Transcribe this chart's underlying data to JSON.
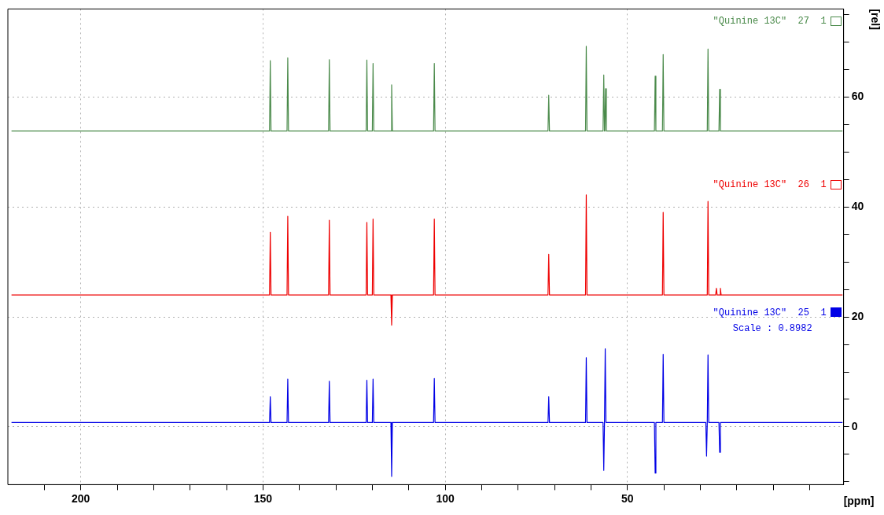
{
  "chart_data": {
    "type": "line",
    "xlabel": "[ppm]",
    "ylabel": "[rel]",
    "xlim": [
      220,
      -9.3
    ],
    "ylim": [
      -10.5,
      76
    ],
    "xticks": [
      {
        "value": 210,
        "label": null
      },
      200,
      {
        "value": 190,
        "label": null
      },
      {
        "value": 180,
        "label": null
      },
      {
        "value": 170,
        "label": null
      },
      {
        "value": 160,
        "label": null
      },
      150,
      {
        "value": 140,
        "label": null
      },
      {
        "value": 130,
        "label": null
      },
      {
        "value": 120,
        "label": null
      },
      {
        "value": 110,
        "label": null
      },
      100,
      {
        "value": 90,
        "label": null
      },
      {
        "value": 80,
        "label": null
      },
      {
        "value": 70,
        "label": null
      },
      {
        "value": 60,
        "label": null
      },
      50,
      {
        "value": 40,
        "label": null
      },
      {
        "value": 30,
        "label": null
      },
      {
        "value": 20,
        "label": null
      },
      {
        "value": 10,
        "label": null
      },
      {
        "value": 0,
        "label": null
      }
    ],
    "yticks": [
      {
        "value": -10,
        "label": null
      },
      {
        "value": -5,
        "label": null
      },
      0,
      {
        "value": 5,
        "label": null
      },
      {
        "value": 10,
        "label": null
      },
      {
        "value": 15,
        "label": null
      },
      20,
      {
        "value": 25,
        "label": null
      },
      {
        "value": 30,
        "label": null
      },
      {
        "value": 35,
        "label": null
      },
      40,
      {
        "value": 45,
        "label": null
      },
      {
        "value": 50,
        "label": null
      },
      {
        "value": 55,
        "label": null
      },
      60,
      {
        "value": 65,
        "label": null
      },
      {
        "value": 70,
        "label": null
      },
      {
        "value": 75,
        "label": null
      }
    ],
    "grid": true,
    "legend": "right",
    "marker": "none",
    "line_style": "solid",
    "annotations": [
      "Scale : 0.8982"
    ],
    "series": [
      {
        "name": "\"Quinine 13C\"  27  1",
        "color": "#4a8a4a",
        "x": [
          219,
          148.2,
          148.0,
          147.8,
          143.4,
          143.2,
          143.0,
          132.0,
          131.8,
          131.6,
          121.7,
          121.5,
          121.3,
          120.0,
          119.8,
          119.6,
          114.9,
          114.7,
          114.5,
          103.2,
          103.0,
          102.8,
          71.8,
          71.6,
          71.4,
          61.5,
          61.3,
          61.1,
          56.7,
          56.5,
          56.3,
          56.2,
          56.0,
          55.8,
          42.6,
          42.4,
          42.2,
          40.4,
          40.2,
          40.0,
          28.1,
          27.9,
          27.7,
          24.9,
          24.7,
          24.5,
          -9
        ],
        "values": [
          53.8,
          53.8,
          66.6,
          53.8,
          53.8,
          67.1,
          53.8,
          53.8,
          66.8,
          53.8,
          53.8,
          66.7,
          53.8,
          53.8,
          66.1,
          53.8,
          53.8,
          62.2,
          53.8,
          53.8,
          66.1,
          53.8,
          53.8,
          60.3,
          53.8,
          53.8,
          69.2,
          53.8,
          53.8,
          64.0,
          53.8,
          53.8,
          61.5,
          53.8,
          53.8,
          63.8,
          53.8,
          53.8,
          67.7,
          53.8,
          53.8,
          68.7,
          53.8,
          53.8,
          61.4,
          53.8,
          53.8
        ]
      },
      {
        "name": "\"Quinine 13C\"  26  1",
        "color": "#ee0000",
        "x": [
          219,
          148.2,
          148.0,
          147.8,
          143.4,
          143.2,
          143.0,
          132.0,
          131.8,
          131.6,
          121.7,
          121.5,
          121.3,
          120.0,
          119.8,
          119.6,
          114.9,
          114.7,
          114.5,
          103.2,
          103.0,
          102.8,
          71.8,
          71.6,
          71.4,
          61.5,
          61.3,
          61.1,
          40.4,
          40.2,
          40.0,
          28.1,
          27.9,
          27.7,
          25.8,
          25.6,
          25.4,
          24.7,
          24.5,
          24.3,
          -9
        ],
        "values": [
          24.0,
          24.0,
          35.4,
          24.0,
          24.0,
          38.3,
          24.0,
          24.0,
          37.6,
          24.0,
          24.0,
          37.2,
          24.0,
          24.0,
          37.8,
          24.0,
          24.0,
          18.5,
          24.0,
          24.0,
          37.8,
          24.0,
          24.0,
          31.4,
          24.0,
          24.0,
          42.2,
          24.0,
          24.0,
          39.0,
          24.0,
          24.0,
          41.0,
          24.0,
          24.0,
          25.2,
          24.0,
          24.0,
          25.2,
          24.0,
          24.0
        ]
      },
      {
        "name": "\"Quinine 13C\"  25  1",
        "color": "#0000e6",
        "x": [
          219,
          148.2,
          148.0,
          147.8,
          143.4,
          143.2,
          143.0,
          132.0,
          131.8,
          131.6,
          121.7,
          121.5,
          121.3,
          120.0,
          119.8,
          119.6,
          114.9,
          114.7,
          114.5,
          103.2,
          103.0,
          102.8,
          71.8,
          71.6,
          71.4,
          61.5,
          61.3,
          61.1,
          56.7,
          56.5,
          56.3,
          56.3,
          56.1,
          55.9,
          42.6,
          42.4,
          42.2,
          40.4,
          40.2,
          40.0,
          28.5,
          28.3,
          28.1,
          28.1,
          27.9,
          27.7,
          24.9,
          24.7,
          24.5,
          -9
        ],
        "values": [
          0.8,
          0.8,
          5.5,
          0.8,
          0.8,
          8.7,
          0.8,
          0.8,
          8.3,
          0.8,
          0.8,
          8.5,
          0.8,
          0.8,
          8.7,
          0.8,
          0.8,
          -9.0,
          0.8,
          0.8,
          8.8,
          0.8,
          0.8,
          5.5,
          0.8,
          0.8,
          12.6,
          0.8,
          0.8,
          -7.9,
          0.8,
          0.8,
          14.2,
          0.8,
          0.8,
          -8.4,
          0.8,
          0.8,
          13.2,
          0.8,
          0.8,
          -5.3,
          0.8,
          0.8,
          13.1,
          0.8,
          0.8,
          -4.6,
          0.8,
          0.8
        ]
      }
    ]
  }
}
